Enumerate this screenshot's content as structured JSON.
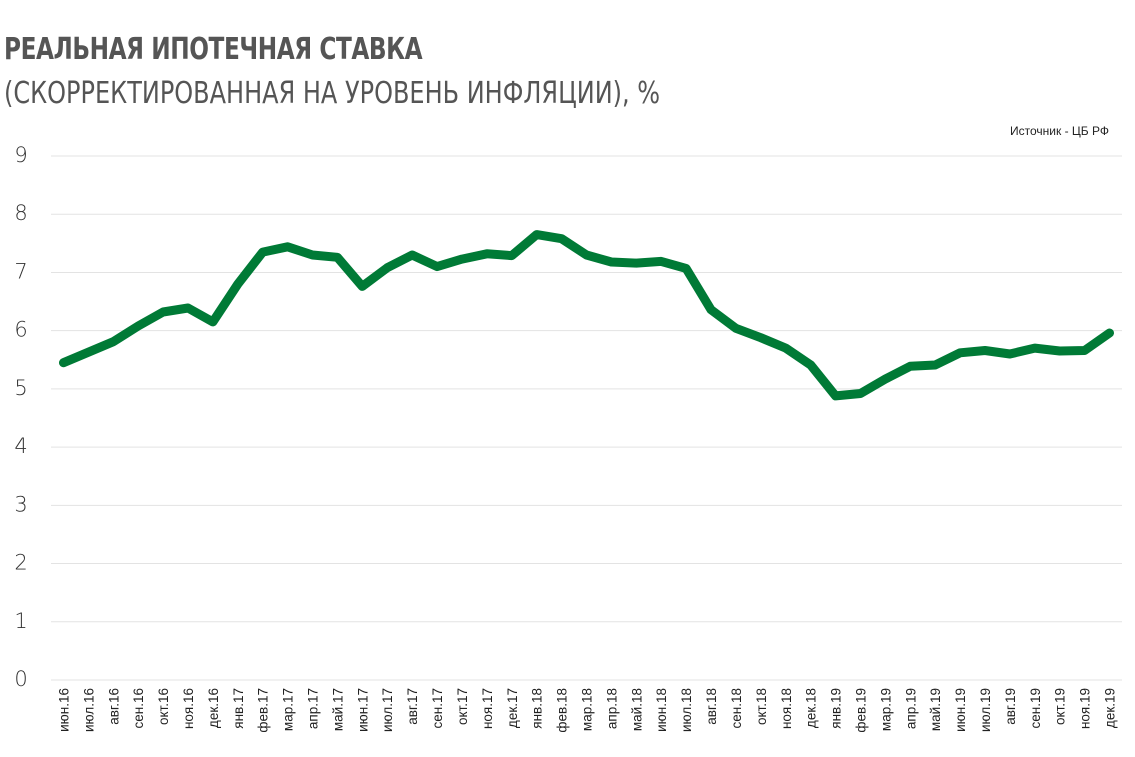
{
  "header": {
    "title": "РЕАЛЬНАЯ ИПОТЕЧНАЯ СТАВКА",
    "subtitle": "(СКОРРЕКТИРОВАННАЯ НА УРОВЕНЬ  ИНФЛЯЦИИ), %",
    "source": "Источник  - ЦБ РФ"
  },
  "colors": {
    "line": "#007a36",
    "grid": "#e3e3e3",
    "title": "#555555"
  },
  "chart_data": {
    "type": "line",
    "title": "РЕАЛЬНАЯ ИПОТЕЧНАЯ СТАВКА (СКОРРЕКТИРОВАННАЯ НА УРОВЕНЬ  ИНФЛЯЦИИ), %",
    "xlabel": "",
    "ylabel": "",
    "ylim": [
      0,
      9
    ],
    "yticks": [
      0,
      1,
      2,
      3,
      4,
      5,
      6,
      7,
      8,
      9
    ],
    "grid": true,
    "legend": null,
    "annotations": [
      "Источник  - ЦБ РФ"
    ],
    "categories": [
      "июн.16",
      "июл.16",
      "авг.16",
      "сен.16",
      "окт.16",
      "ноя.16",
      "дек.16",
      "янв.17",
      "фев.17",
      "мар.17",
      "апр.17",
      "май.17",
      "июн.17",
      "июл.17",
      "авг.17",
      "сен.17",
      "окт.17",
      "ноя.17",
      "дек.17",
      "янв.18",
      "фев.18",
      "мар.18",
      "апр.18",
      "май.18",
      "июн.18",
      "июл.18",
      "авг.18",
      "сен.18",
      "окт.18",
      "ноя.18",
      "дек.18",
      "янв.19",
      "фев.19",
      "мар.19",
      "апр.19",
      "май.19",
      "июн.19",
      "июл.19",
      "авг.19",
      "сен.19",
      "окт.19",
      "ноя.19",
      "дек.19"
    ],
    "series": [
      {
        "name": "Реальная ипотечная ставка",
        "color": "#007a36",
        "values": [
          5.45,
          5.63,
          5.81,
          6.08,
          6.32,
          6.39,
          6.15,
          6.8,
          7.35,
          7.44,
          7.3,
          7.26,
          6.76,
          7.08,
          7.3,
          7.1,
          7.23,
          7.32,
          7.29,
          7.65,
          7.58,
          7.3,
          7.18,
          7.16,
          7.19,
          7.07,
          6.36,
          6.04,
          5.88,
          5.7,
          5.41,
          4.88,
          4.92,
          5.17,
          5.39,
          5.41,
          5.62,
          5.66,
          5.6,
          5.7,
          5.65,
          5.66,
          5.96
        ]
      }
    ]
  }
}
